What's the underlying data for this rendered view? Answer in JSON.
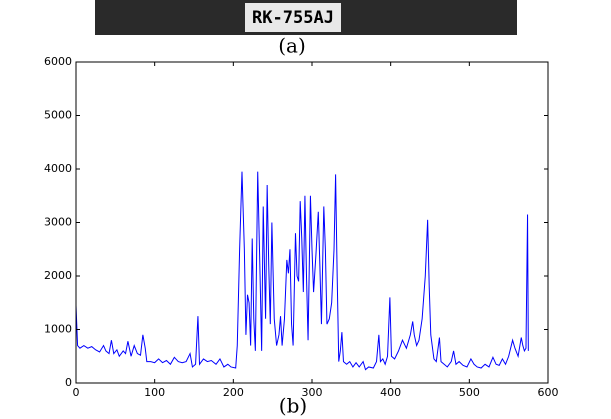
{
  "figure": {
    "image_text": "RK-755AJ",
    "caption_a": "(a)",
    "caption_b": "(b)"
  },
  "chart_data": {
    "type": "line",
    "x": [
      0,
      2,
      5,
      10,
      15,
      20,
      25,
      30,
      35,
      38,
      42,
      45,
      48,
      52,
      55,
      60,
      63,
      66,
      70,
      74,
      78,
      82,
      85,
      88,
      90,
      95,
      100,
      105,
      110,
      115,
      120,
      125,
      130,
      135,
      140,
      145,
      148,
      152,
      155,
      157,
      162,
      167,
      172,
      178,
      183,
      188,
      193,
      197,
      203,
      205,
      208,
      211,
      214,
      216,
      218,
      220,
      222,
      224,
      226,
      228,
      231,
      234,
      236,
      238,
      241,
      243,
      245,
      247,
      249,
      252,
      255,
      258,
      260,
      262,
      265,
      268,
      270,
      272,
      274,
      276,
      279,
      281,
      283,
      285,
      287,
      289,
      291,
      293,
      295,
      298,
      300,
      302,
      305,
      308,
      310,
      312,
      315,
      317,
      319,
      322,
      325,
      328,
      330,
      332,
      334,
      336,
      338,
      340,
      344,
      348,
      352,
      356,
      360,
      365,
      368,
      372,
      378,
      382,
      385,
      387,
      390,
      393,
      396,
      399,
      401,
      405,
      410,
      415,
      420,
      425,
      428,
      430,
      433,
      436,
      440,
      444,
      447,
      449,
      451,
      455,
      458,
      462,
      464,
      468,
      472,
      477,
      480,
      483,
      487,
      492,
      497,
      502,
      506,
      510,
      515,
      520,
      525,
      530,
      534,
      538,
      542,
      546,
      550,
      555,
      558,
      562,
      566,
      568,
      570,
      572,
      574,
      575
    ],
    "series": [
      {
        "color": "#0000ff",
        "values": [
          1450,
          700,
          650,
          700,
          650,
          680,
          620,
          580,
          700,
          600,
          550,
          800,
          550,
          620,
          500,
          600,
          550,
          780,
          500,
          700,
          550,
          520,
          900,
          650,
          400,
          400,
          380,
          450,
          380,
          420,
          350,
          480,
          400,
          380,
          400,
          550,
          300,
          350,
          1250,
          350,
          450,
          400,
          420,
          350,
          450,
          300,
          350,
          300,
          280,
          700,
          2500,
          3950,
          2500,
          900,
          1650,
          1500,
          700,
          2700,
          1200,
          600,
          3950,
          2000,
          600,
          3300,
          1200,
          3700,
          2200,
          1100,
          3000,
          1200,
          700,
          900,
          1250,
          700,
          1200,
          2300,
          2050,
          2500,
          1100,
          700,
          2800,
          2000,
          1900,
          3400,
          2700,
          1700,
          3500,
          2000,
          800,
          3500,
          2500,
          1700,
          2400,
          3200,
          2200,
          1100,
          3300,
          2500,
          1100,
          1200,
          1500,
          2500,
          3900,
          2000,
          400,
          600,
          950,
          400,
          350,
          400,
          300,
          380,
          300,
          400,
          250,
          300,
          280,
          400,
          900,
          400,
          450,
          350,
          500,
          1600,
          500,
          450,
          600,
          800,
          650,
          900,
          1150,
          900,
          700,
          800,
          1200,
          2000,
          3050,
          1800,
          900,
          450,
          400,
          850,
          400,
          350,
          300,
          400,
          600,
          350,
          400,
          330,
          300,
          450,
          350,
          300,
          280,
          350,
          300,
          480,
          350,
          330,
          450,
          350,
          500,
          800,
          650,
          500,
          850,
          700,
          600,
          650,
          3150,
          600
        ]
      }
    ],
    "xlim": [
      0,
      600
    ],
    "ylim": [
      0,
      6000
    ],
    "xticks": [
      0,
      100,
      200,
      300,
      400,
      500,
      600
    ],
    "yticks": [
      0,
      1000,
      2000,
      3000,
      4000,
      5000,
      6000
    ],
    "grid": false
  }
}
